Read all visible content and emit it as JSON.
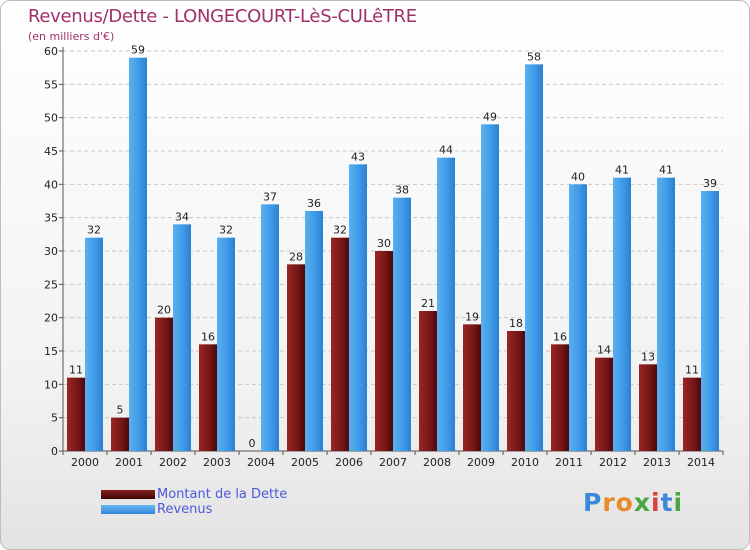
{
  "header": {
    "title": "Revenus/Dette - LONGECOURT-LèS-CULêTRE",
    "subtitle": "(en milliers d'€)"
  },
  "legend": {
    "items": [
      {
        "label": "Montant de la Dette",
        "color": "#7a1717"
      },
      {
        "label": "Revenus",
        "color": "#3d9ae8"
      }
    ]
  },
  "logo": {
    "letters": [
      {
        "ch": "P",
        "color": "#3d88d8"
      },
      {
        "ch": "r",
        "color": "#e8892a"
      },
      {
        "ch": "o",
        "color": "#e8892a"
      },
      {
        "ch": "x",
        "color": "#4aa640"
      },
      {
        "ch": "i",
        "color": "#d94040"
      },
      {
        "ch": "t",
        "color": "#3d88d8"
      },
      {
        "ch": "i",
        "color": "#4aa640"
      }
    ]
  },
  "chart_data": {
    "type": "bar",
    "title": "Revenus/Dette - LONGECOURT-LèS-CULêTRE",
    "subtitle": "(en milliers d'€)",
    "categories": [
      "2000",
      "2001",
      "2002",
      "2003",
      "2004",
      "2005",
      "2006",
      "2007",
      "2008",
      "2009",
      "2010",
      "2011",
      "2012",
      "2013",
      "2014"
    ],
    "series": [
      {
        "name": "Montant de la Dette",
        "color": "#7a1717",
        "values": [
          11,
          5,
          20,
          16,
          0,
          28,
          32,
          30,
          21,
          19,
          18,
          16,
          14,
          13,
          11
        ]
      },
      {
        "name": "Revenus",
        "color": "#3d9ae8",
        "values": [
          32,
          59,
          34,
          32,
          37,
          36,
          43,
          38,
          44,
          49,
          58,
          40,
          41,
          41,
          39
        ]
      }
    ],
    "ylim": [
      0,
      60
    ],
    "yticks": [
      0,
      5,
      10,
      15,
      20,
      25,
      30,
      35,
      40,
      45,
      50,
      55,
      60
    ],
    "grid": true,
    "legend_position": "bottom-left"
  }
}
